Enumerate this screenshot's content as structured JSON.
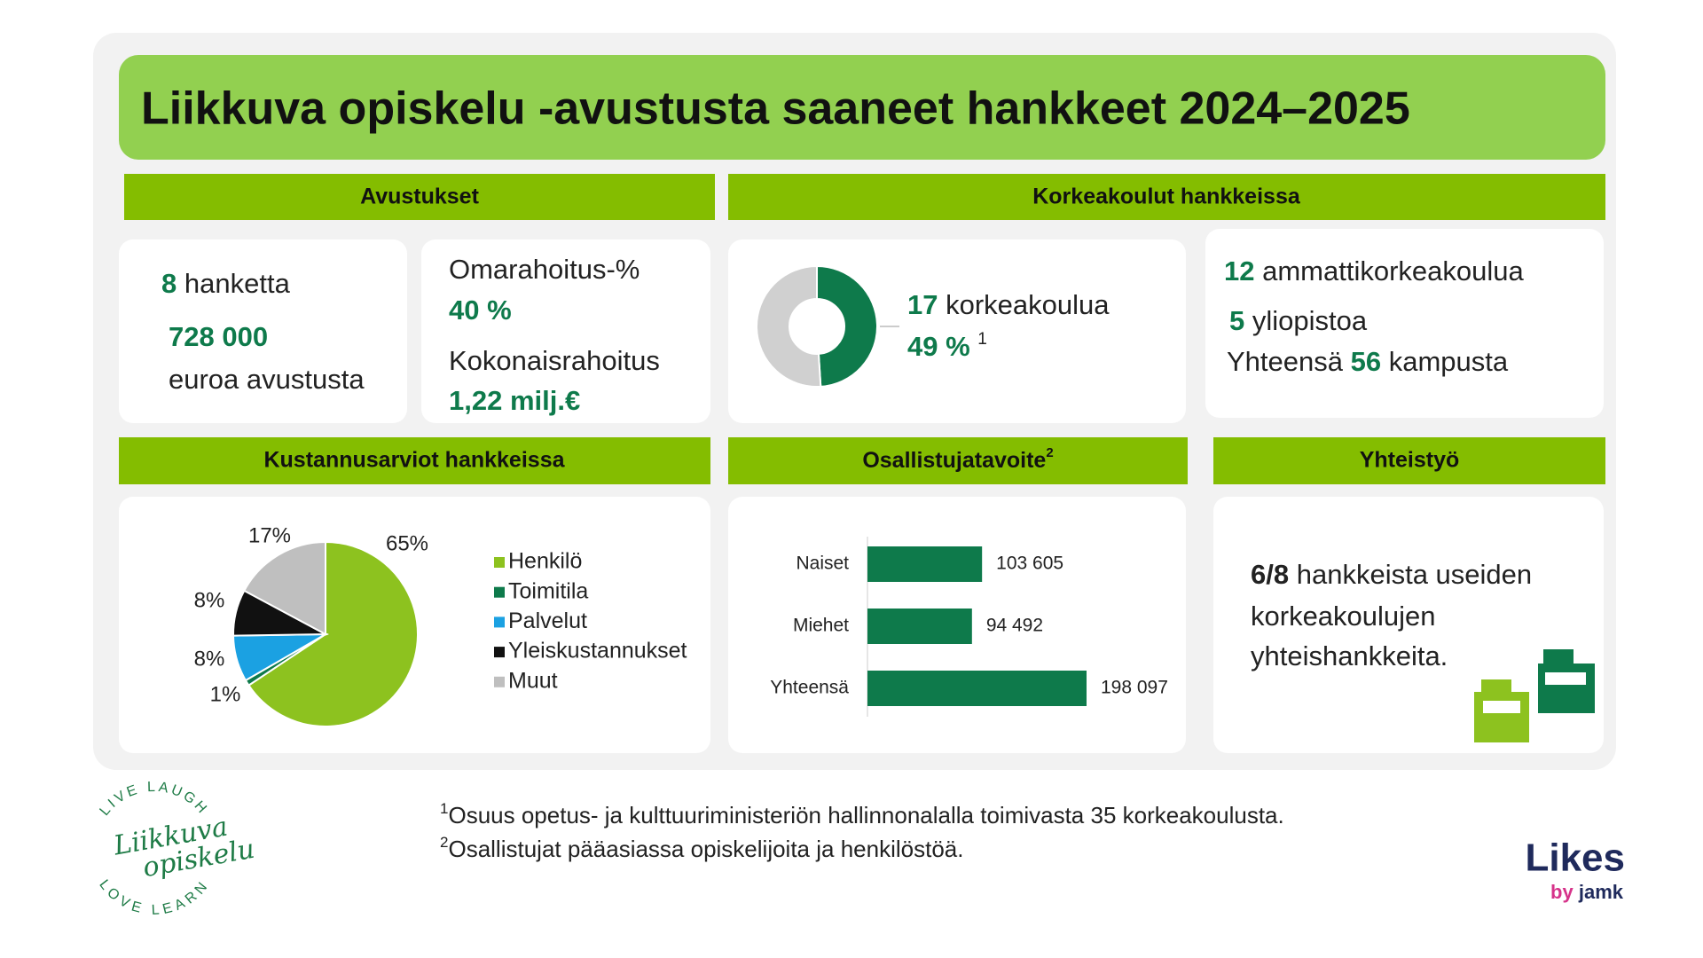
{
  "title": "Liikkuva opiskelu -avustusta saaneet hankkeet 2024–2025",
  "sections": {
    "avustukset": "Avustukset",
    "korkeakoulut": "Korkeakoulut hankkeissa",
    "kustannukset": "Kustannusarviot hankkeissa",
    "osallistujat": "Osallistujatavoite",
    "osallistujat_note": "2",
    "yhteistyo": "Yhteistyö"
  },
  "avustukset": {
    "hankkeet_count": "8",
    "hankkeet_label": "hanketta",
    "amount": "728 000",
    "amount_label": "euroa avustusta",
    "omarahoitus_label": "Omarahoitus-%",
    "omarahoitus": "40 %",
    "kokonais_label": "Kokonaisrahoitus",
    "kokonais": "1,22 milj.€"
  },
  "korkeakoulut": {
    "count": "17",
    "count_label": "korkeakoulua",
    "share_note": "1",
    "amk_count": "12",
    "amk_label": "ammattikorkeakoulua",
    "yo_count": "5",
    "yo_label": "yliopistoa",
    "total_prefix": "Yhteensä",
    "total_count": "56",
    "total_label": "kampusta"
  },
  "yhteistyo": {
    "lead": "6/8",
    "lines": [
      "hankkeista useiden",
      "korkeakoulujen",
      "yhteishankkeita."
    ]
  },
  "footnotes": [
    {
      "mark": "1",
      "text": "Osuus opetus- ja kulttuuriministeriön hallinnonalalla toimivasta 35 korkeakoulusta."
    },
    {
      "mark": "2",
      "text": "Osallistujat pääasiassa opiskelijoita ja henkilöstöä."
    }
  ],
  "logos": {
    "liikkuva_top": "LIVE LAUGH",
    "liikkuva_bottom": "LOVE LEARN",
    "liikkuva_name": [
      "Liikkuva",
      "opiskelu"
    ],
    "likes": "Likes",
    "likes_by": "by",
    "likes_jamk": "jamk"
  },
  "chart_data": [
    {
      "type": "donut",
      "values": [
        49,
        51
      ],
      "value_labels": [
        "49 %",
        null
      ],
      "colors": [
        "#0e7a4b",
        "#d0d0d0"
      ]
    },
    {
      "type": "pie",
      "categories": [
        "Henkilö",
        "Toimitila",
        "Palvelut",
        "Yleiskustannukset",
        "Muut"
      ],
      "values": [
        65,
        1,
        8,
        8,
        17
      ],
      "value_labels": [
        "65%",
        "1%",
        "8%",
        "8%",
        "17%"
      ],
      "colors": [
        "#8dc21f",
        "#0e7a4b",
        "#1ba1e2",
        "#111111",
        "#bfbfbf"
      ]
    },
    {
      "type": "bar",
      "orientation": "horizontal",
      "categories": [
        "Naiset",
        "Miehet",
        "Yhteensä"
      ],
      "values": [
        103605,
        94492,
        198097
      ],
      "value_labels": [
        "103 605",
        "94 492",
        "198 097"
      ],
      "color": "#0e7a4b"
    }
  ]
}
